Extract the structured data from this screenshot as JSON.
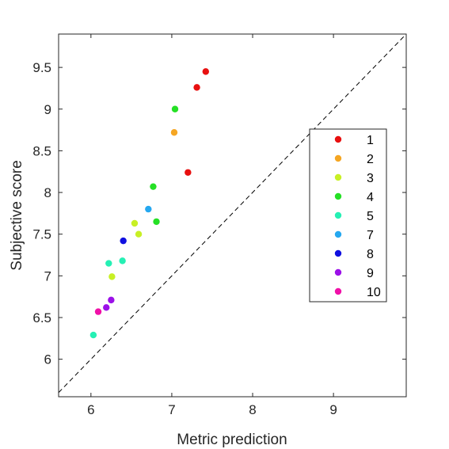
{
  "chart_data": {
    "type": "scatter",
    "title": "",
    "xlabel": "Metric prediction",
    "ylabel": "Subjective score",
    "xlim": [
      5.6,
      9.9
    ],
    "ylim": [
      5.55,
      9.9
    ],
    "xticks": [
      "6",
      "7",
      "8",
      "9"
    ],
    "xtick_values": [
      6,
      7,
      8,
      9
    ],
    "yticks": [
      "6",
      "6.5",
      "7",
      "7.5",
      "8",
      "8.5",
      "9",
      "9.5"
    ],
    "ytick_values": [
      6,
      6.5,
      7,
      7.5,
      8,
      8.5,
      9,
      9.5
    ],
    "grid": false,
    "reference_line": "y = x (dashed)",
    "legend_position": "right",
    "series": [
      {
        "name": "1",
        "color": "#e81010",
        "points": [
          [
            7.42,
            9.45
          ],
          [
            7.31,
            9.26
          ],
          [
            7.2,
            8.24
          ]
        ]
      },
      {
        "name": "2",
        "color": "#f5a623",
        "points": [
          [
            7.03,
            8.72
          ]
        ]
      },
      {
        "name": "3",
        "color": "#c8f025",
        "points": [
          [
            6.54,
            7.63
          ],
          [
            6.59,
            7.5
          ],
          [
            6.26,
            6.99
          ]
        ]
      },
      {
        "name": "4",
        "color": "#25e025",
        "points": [
          [
            7.04,
            9.0
          ],
          [
            6.77,
            8.07
          ],
          [
            6.81,
            7.65
          ]
        ]
      },
      {
        "name": "5",
        "color": "#25f0b4",
        "points": [
          [
            6.39,
            7.18
          ],
          [
            6.22,
            7.15
          ],
          [
            6.03,
            6.29
          ]
        ]
      },
      {
        "name": "7",
        "color": "#25a8f0",
        "points": [
          [
            6.71,
            7.8
          ]
        ]
      },
      {
        "name": "8",
        "color": "#1010e0",
        "points": [
          [
            6.4,
            7.42
          ]
        ]
      },
      {
        "name": "9",
        "color": "#9b10e8",
        "points": [
          [
            6.25,
            6.71
          ],
          [
            6.19,
            6.62
          ]
        ]
      },
      {
        "name": "10",
        "color": "#f010a8",
        "points": [
          [
            6.09,
            6.57
          ]
        ]
      }
    ]
  }
}
